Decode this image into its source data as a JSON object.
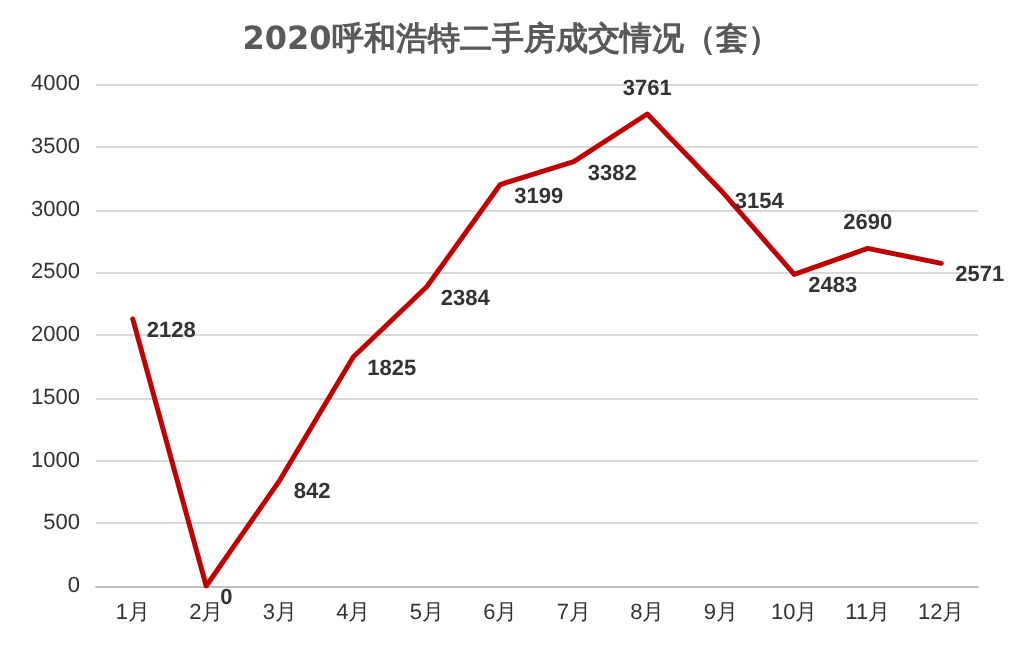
{
  "chart_data": {
    "type": "line",
    "title": "2020呼和浩特二手房成交情况（套）",
    "categories": [
      "1月",
      "2月",
      "3月",
      "4月",
      "5月",
      "6月",
      "7月",
      "8月",
      "9月",
      "10月",
      "11月",
      "12月"
    ],
    "series": [
      {
        "color": "#c00000",
        "values": [
          2128,
          0,
          842,
          1825,
          2384,
          3199,
          3382,
          3761,
          3154,
          2483,
          2690,
          2571
        ]
      }
    ],
    "ylim": [
      0,
      4000
    ],
    "yticks": [
      0,
      500,
      1000,
      1500,
      2000,
      2500,
      3000,
      3500,
      4000
    ],
    "grid": "y",
    "marker": "none",
    "line_style": "solid",
    "data_labels": true
  }
}
